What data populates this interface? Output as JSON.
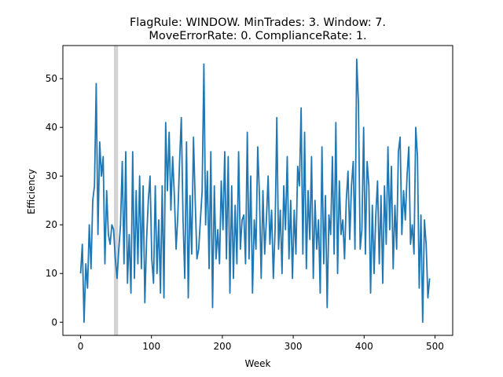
{
  "chart_data": {
    "type": "line",
    "title": "FlagRule: WINDOW. MinTrades: 3. Window: 7.",
    "subtitle": "MoveErrorRate: 0. ComplianceRate: 1.",
    "xlabel": "Week",
    "ylabel": "Efficiency",
    "xlim": [
      -25,
      525
    ],
    "ylim": [
      -2.7,
      56.8
    ],
    "xticks": [
      0,
      100,
      200,
      300,
      400,
      500
    ],
    "yticks": [
      0,
      10,
      20,
      30,
      40,
      50
    ],
    "grid": false,
    "legend": "none",
    "line_color": "#1f77b4",
    "highlight_band": {
      "x0": 47,
      "x1": 53,
      "color": "#d3d3d3"
    },
    "series": [
      {
        "values": [
          10,
          16,
          0,
          12,
          7,
          20,
          11,
          25,
          28,
          49,
          18,
          37,
          30,
          34,
          12,
          27,
          18,
          16,
          20,
          19,
          13,
          9,
          15,
          20,
          33,
          12,
          35,
          8,
          18,
          6,
          35,
          9,
          27,
          12,
          30,
          11,
          28,
          4,
          17,
          25,
          30,
          13,
          8,
          28,
          10,
          21,
          6,
          28,
          5,
          41,
          27,
          39,
          23,
          34,
          26,
          15,
          22,
          33,
          42,
          21,
          9,
          37,
          5,
          26,
          14,
          38,
          25,
          13,
          15,
          21,
          27,
          53,
          20,
          31,
          11,
          35,
          3,
          28,
          13,
          19,
          12,
          29,
          19,
          35,
          13,
          34,
          6,
          28,
          9,
          24,
          12,
          35,
          15,
          21,
          22,
          12,
          39,
          13,
          30,
          6,
          21,
          15,
          36,
          26,
          9,
          27,
          14,
          21,
          30,
          16,
          23,
          9,
          19,
          42,
          15,
          23,
          10,
          28,
          19,
          34,
          13,
          25,
          9,
          23,
          14,
          32,
          28,
          44,
          14,
          39,
          11,
          27,
          17,
          34,
          9,
          25,
          15,
          21,
          6,
          36,
          12,
          26,
          3,
          22,
          18,
          34,
          14,
          41,
          10,
          29,
          18,
          21,
          13,
          25,
          31,
          17,
          28,
          33,
          15,
          54,
          45,
          15,
          19,
          40,
          14,
          33,
          28,
          6,
          24,
          10,
          22,
          29,
          12,
          26,
          8,
          28,
          16,
          36,
          19,
          32,
          11,
          24,
          15,
          35,
          38,
          18,
          27,
          21,
          30,
          36,
          16,
          20,
          14,
          40,
          34,
          7,
          22,
          0,
          21,
          16,
          5,
          9
        ],
        "x_step": 2.45
      }
    ]
  }
}
